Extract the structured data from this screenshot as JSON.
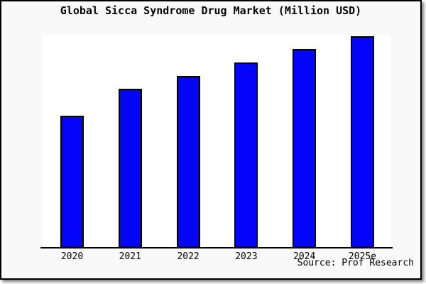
{
  "title": "Global Sicca Syndrome Drug Market (Million USD)",
  "source_label": "Source: Prof Research",
  "colors": {
    "bar_fill": "#0404f8",
    "bar_border": "#000000",
    "axis": "#000000",
    "plot_background": "#ffffff",
    "canvas_background": "#f9f9f9",
    "frame_border": "#000000",
    "text": "#000000"
  },
  "chart_data": {
    "type": "bar",
    "title": "Global Sicca Syndrome Drug Market (Million USD)",
    "categories": [
      "2020",
      "2021",
      "2022",
      "2023",
      "2024",
      "2025e"
    ],
    "values": [
      100,
      120,
      130,
      140,
      150,
      160
    ],
    "values_note": "no y-axis ticks or data labels shown; values are relative bar heights with 2025e normalized to 160 (ratios 100:120:130:140:150:160)",
    "xlabel": "",
    "ylabel": "",
    "ylim": [
      0,
      161
    ],
    "grid": false,
    "legend_position": "none",
    "y_axis_visible": false,
    "source": "Source: Prof Research",
    "bar_color": "#0404f8"
  }
}
